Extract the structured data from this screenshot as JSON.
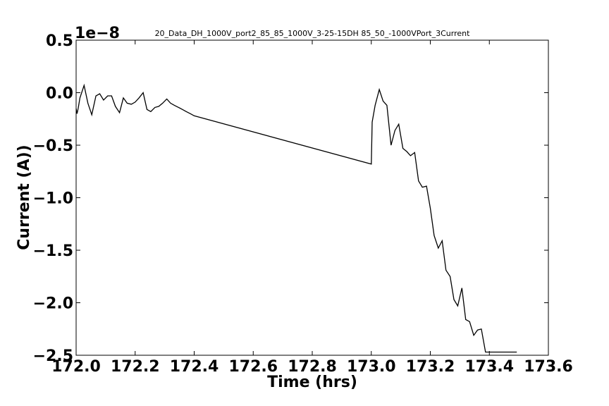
{
  "chart_data": {
    "type": "line",
    "title": "20_Data_DH_1000V_port2_85_85_1000V_3-25-15DH 85_50_-1000VPort_3Current",
    "xlabel": "Time (hrs)",
    "ylabel": "Current (A))",
    "y_offset_text": "1e−8",
    "xlim": [
      172.0,
      173.6
    ],
    "ylim": [
      -2.5,
      0.5
    ],
    "xticks": [
      172.0,
      172.2,
      172.4,
      172.6,
      172.8,
      173.0,
      173.2,
      173.4,
      173.6
    ],
    "xtick_labels": [
      "172.0",
      "172.2",
      "172.4",
      "172.6",
      "172.8",
      "173.0",
      "173.2",
      "173.4",
      "173.6"
    ],
    "yticks": [
      0.5,
      0.0,
      -0.5,
      -1.0,
      -1.5,
      -2.0,
      -2.5
    ],
    "ytick_labels": [
      "0.5",
      "0.0",
      "−0.5",
      "−1.0",
      "−1.5",
      "−2.0",
      "−2.5"
    ],
    "grid": false,
    "line_color": "#000000",
    "series": [
      {
        "x": [
          172.0,
          172.003,
          172.007,
          172.013,
          172.027,
          172.04,
          172.053,
          172.067,
          172.08,
          172.093,
          172.107,
          172.12,
          172.133,
          172.147,
          172.16,
          172.173,
          172.187,
          172.2,
          172.213,
          172.227,
          172.24,
          172.253,
          172.267,
          172.28,
          172.293,
          172.307,
          172.32,
          172.333,
          172.347,
          172.36,
          172.373,
          172.387,
          172.4,
          173.0,
          173.003,
          173.013,
          173.027,
          173.04,
          173.053,
          173.067,
          173.08,
          173.093,
          173.107,
          173.12,
          173.133,
          173.147,
          173.16,
          173.173,
          173.187,
          173.2,
          173.213,
          173.227,
          173.24,
          173.253,
          173.267,
          173.28,
          173.293,
          173.307,
          173.32,
          173.333,
          173.347,
          173.36,
          173.373,
          173.387,
          173.4,
          173.413,
          173.427,
          173.44,
          173.453,
          173.467,
          173.48,
          173.493
        ],
        "y": [
          -0.15,
          -0.2,
          -0.15,
          -0.05,
          0.07,
          -0.1,
          -0.21,
          -0.03,
          -0.01,
          -0.07,
          -0.03,
          -0.03,
          -0.13,
          -0.19,
          -0.05,
          -0.1,
          -0.11,
          -0.09,
          -0.05,
          0.0,
          -0.16,
          -0.18,
          -0.14,
          -0.13,
          -0.1,
          -0.06,
          -0.1,
          -0.12,
          -0.14,
          -0.16,
          -0.18,
          -0.2,
          -0.22,
          -0.68,
          -0.28,
          -0.12,
          0.03,
          -0.08,
          -0.12,
          -0.5,
          -0.36,
          -0.3,
          -0.53,
          -0.56,
          -0.6,
          -0.57,
          -0.84,
          -0.9,
          -0.89,
          -1.1,
          -1.36,
          -1.48,
          -1.41,
          -1.69,
          -1.75,
          -1.97,
          -2.03,
          -1.86,
          -2.16,
          -2.18,
          -2.31,
          -2.26,
          -2.25,
          -2.47,
          -2.47,
          -2.47,
          -2.47,
          -2.47,
          -2.47,
          -2.47,
          -2.47,
          -2.47
        ]
      }
    ]
  }
}
